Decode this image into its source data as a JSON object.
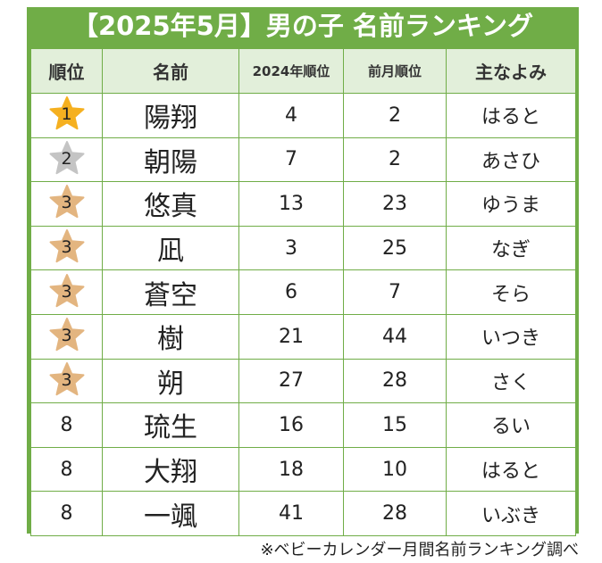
{
  "title": "【2025年5月】男の子 名前ランキング",
  "headers": {
    "rank": "順位",
    "name": "名前",
    "rank_2024": "2024年順位",
    "prev_month": "前月順位",
    "reading": "主なよみ"
  },
  "colors": {
    "accent": "#70ad47",
    "header_bg": "#e2efda",
    "gold": "#f5b020",
    "silver": "#c4c4c4",
    "bronze": "#e3b580"
  },
  "rows": [
    {
      "rank": "1",
      "medal": "gold",
      "name": "陽翔",
      "rank_2024": "4",
      "prev_month": "2",
      "reading": "はると"
    },
    {
      "rank": "2",
      "medal": "silver",
      "name": "朝陽",
      "rank_2024": "7",
      "prev_month": "2",
      "reading": "あさひ"
    },
    {
      "rank": "3",
      "medal": "bronze",
      "name": "悠真",
      "rank_2024": "13",
      "prev_month": "23",
      "reading": "ゆうま"
    },
    {
      "rank": "3",
      "medal": "bronze",
      "name": "凪",
      "rank_2024": "3",
      "prev_month": "25",
      "reading": "なぎ"
    },
    {
      "rank": "3",
      "medal": "bronze",
      "name": "蒼空",
      "rank_2024": "6",
      "prev_month": "7",
      "reading": "そら"
    },
    {
      "rank": "3",
      "medal": "bronze",
      "name": "樹",
      "rank_2024": "21",
      "prev_month": "44",
      "reading": "いつき"
    },
    {
      "rank": "3",
      "medal": "bronze",
      "name": "朔",
      "rank_2024": "27",
      "prev_month": "28",
      "reading": "さく"
    },
    {
      "rank": "8",
      "medal": "",
      "name": "琉生",
      "rank_2024": "16",
      "prev_month": "15",
      "reading": "るい"
    },
    {
      "rank": "8",
      "medal": "",
      "name": "大翔",
      "rank_2024": "18",
      "prev_month": "10",
      "reading": "はると"
    },
    {
      "rank": "8",
      "medal": "",
      "name": "一颯",
      "rank_2024": "41",
      "prev_month": "28",
      "reading": "いぶき"
    }
  ],
  "source": "※ベビーカレンダー月間名前ランキング調べ"
}
